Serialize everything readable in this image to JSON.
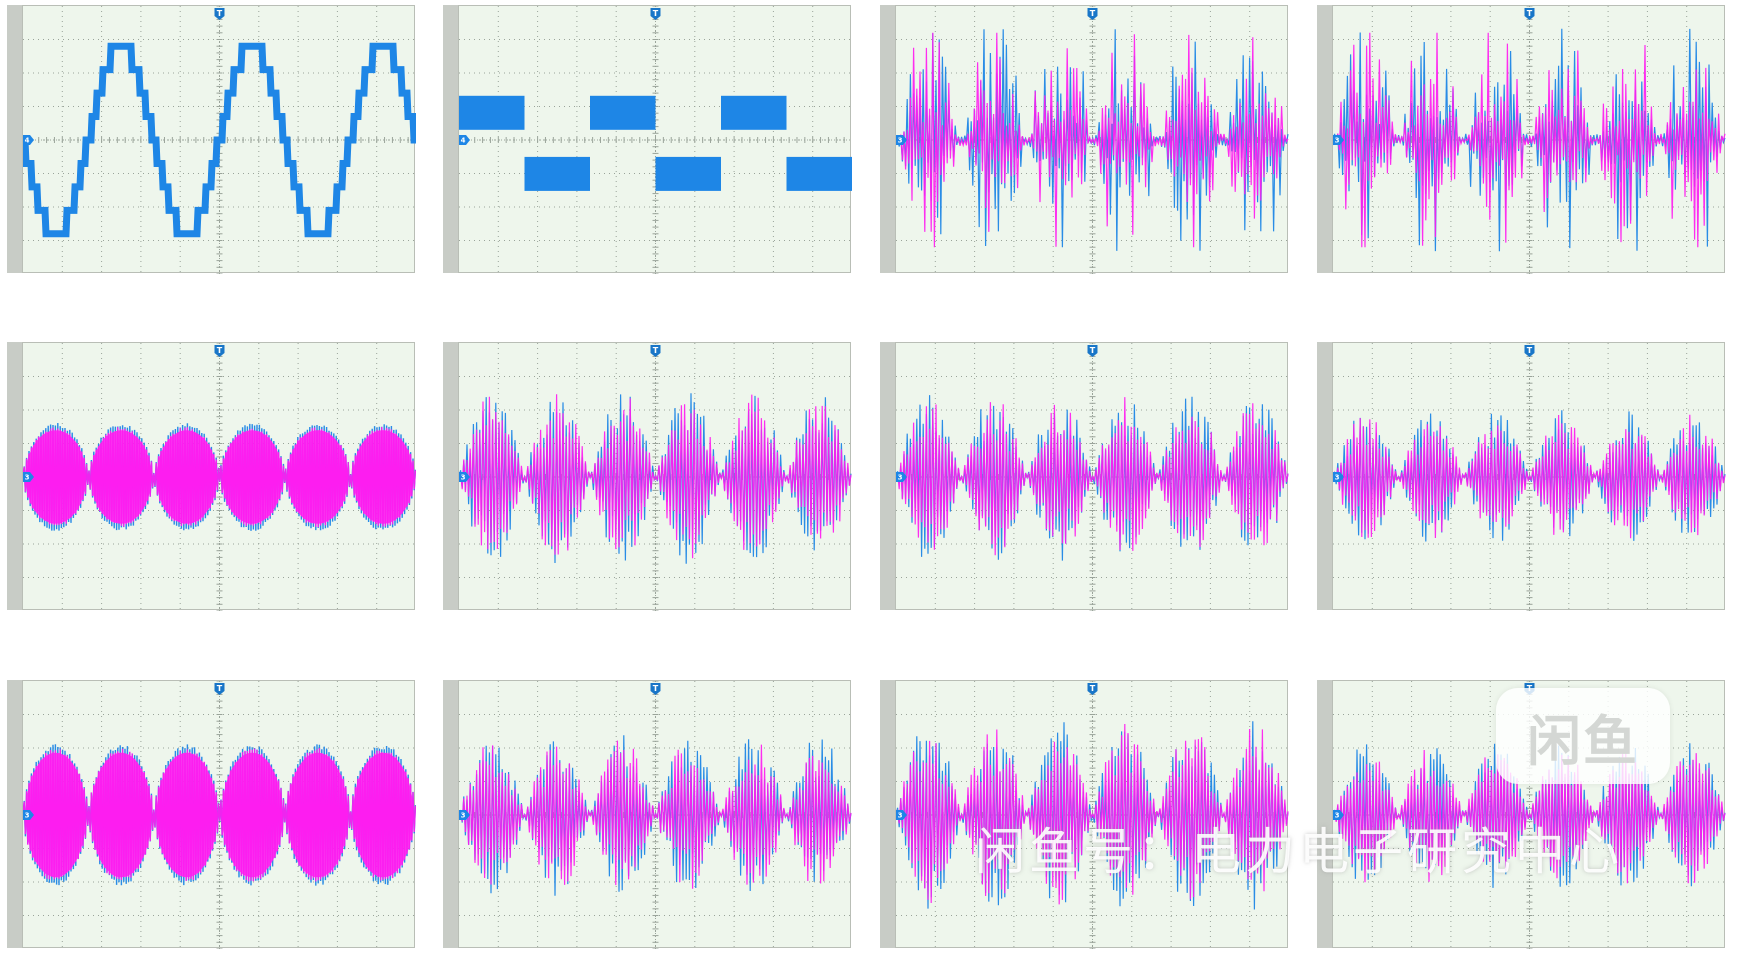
{
  "colors": {
    "ch_blue": "#1e86e6",
    "ch_magenta": "#ff1cf0",
    "grid_bg": "#eef6ec",
    "grid_line": "#9aa49a"
  },
  "trigger_label": "T",
  "watermark": {
    "logo": "闲鱼",
    "text": "闲鱼号：电力电子研究中心"
  },
  "chart_data": [
    {
      "type": "line",
      "row": 1,
      "col": 1,
      "wave": "staircase-sine",
      "channels": [
        "blue"
      ],
      "cycles": 3,
      "amplitude_div": 2.8,
      "channel_label": "4"
    },
    {
      "type": "line",
      "row": 1,
      "col": 2,
      "wave": "square",
      "channels": [
        "blue"
      ],
      "cycles": 3,
      "levels_div": [
        1.2,
        -1.4
      ],
      "channel_label": "4"
    },
    {
      "type": "line",
      "row": 1,
      "col": 3,
      "wave": "burst-spiky",
      "channels": [
        "blue",
        "magenta"
      ],
      "bursts": 6,
      "amplitude_div": 3.2,
      "channel_label": "3"
    },
    {
      "type": "line",
      "row": 1,
      "col": 4,
      "wave": "burst-spiky",
      "channels": [
        "blue",
        "magenta"
      ],
      "bursts": 6,
      "amplitude_div": 3.2,
      "channel_label": "3"
    },
    {
      "type": "line",
      "row": 2,
      "col": 1,
      "wave": "burst-smooth",
      "channels": [
        "blue",
        "magenta"
      ],
      "bursts": 6,
      "amplitude_div": 1.5,
      "channel_label": "3"
    },
    {
      "type": "line",
      "row": 2,
      "col": 2,
      "wave": "burst-mixed",
      "channels": [
        "blue",
        "magenta"
      ],
      "bursts": 6,
      "amplitude_div": 2.4,
      "channel_label": "3"
    },
    {
      "type": "line",
      "row": 2,
      "col": 3,
      "wave": "burst-mixed",
      "channels": [
        "blue",
        "magenta"
      ],
      "bursts": 6,
      "amplitude_div": 2.3,
      "channel_label": "3"
    },
    {
      "type": "line",
      "row": 2,
      "col": 4,
      "wave": "burst-mixed",
      "channels": [
        "blue",
        "magenta"
      ],
      "bursts": 6,
      "amplitude_div": 1.8,
      "channel_label": "3"
    },
    {
      "type": "line",
      "row": 3,
      "col": 1,
      "wave": "burst-smooth",
      "channels": [
        "blue",
        "magenta"
      ],
      "bursts": 6,
      "amplitude_div": 2.0,
      "channel_label": "3"
    },
    {
      "type": "line",
      "row": 3,
      "col": 2,
      "wave": "burst-mixed",
      "channels": [
        "blue",
        "magenta"
      ],
      "bursts": 6,
      "amplitude_div": 2.2,
      "channel_label": "3"
    },
    {
      "type": "line",
      "row": 3,
      "col": 3,
      "wave": "burst-mixed",
      "channels": [
        "blue",
        "magenta"
      ],
      "bursts": 6,
      "amplitude_div": 2.6,
      "channel_label": "3"
    },
    {
      "type": "line",
      "row": 3,
      "col": 4,
      "wave": "burst-mixed",
      "channels": [
        "blue",
        "magenta"
      ],
      "bursts": 6,
      "amplitude_div": 2.0,
      "channel_label": "3"
    }
  ]
}
